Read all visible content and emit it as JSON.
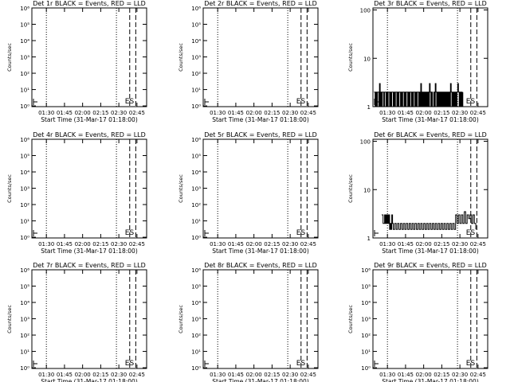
{
  "chart_data": [
    {
      "type": "line",
      "title": "Det 1r BLACK = Events, RED = LLD",
      "ylabel": "Counts/sec",
      "xlabel": "Start Time (31-Mar-17 01:18:00)",
      "yscale": "log",
      "ylim": [
        0.9,
        1000000.0
      ],
      "yticks": [
        "10⁰",
        "10¹",
        "10²",
        "10³",
        "10⁴",
        "10⁵",
        "10⁶"
      ],
      "x_ticks": [
        "01:30",
        "01:45",
        "02:00",
        "02:15",
        "02:30",
        "02:45"
      ],
      "markers": {
        "dotted": [
          "01:30",
          "02:28"
        ],
        "dashed": [
          "02:39",
          "02:44"
        ]
      },
      "annotation": "ES",
      "series": []
    },
    {
      "type": "line",
      "title": "Det 2r BLACK = Events, RED = LLD",
      "ylabel": "Counts/sec",
      "xlabel": "Start Time (31-Mar-17 01:18:00)",
      "yscale": "log",
      "ylim": [
        0.9,
        1000000.0
      ],
      "yticks": [
        "10⁰",
        "10¹",
        "10²",
        "10³",
        "10⁴",
        "10⁵",
        "10⁶"
      ],
      "x_ticks": [
        "01:30",
        "01:45",
        "02:00",
        "02:15",
        "02:30",
        "02:45"
      ],
      "markers": {
        "dotted": [
          "01:30",
          "02:28"
        ],
        "dashed": [
          "02:39",
          "02:44"
        ]
      },
      "annotation": "ES",
      "series": []
    },
    {
      "type": "line",
      "title": "Det 3r BLACK = Events, RED = LLD",
      "ylabel": "Counts/sec",
      "xlabel": "Start Time (31-Mar-17 01:18:00)",
      "yscale": "log",
      "ylim": [
        1,
        110
      ],
      "yticks": [
        "1",
        "10",
        "100"
      ],
      "x_ticks": [
        "01:30",
        "01:45",
        "02:00",
        "02:15",
        "02:30",
        "02:45"
      ],
      "markers": {
        "dotted": [
          "01:30",
          "02:28"
        ],
        "dashed": [
          "02:39",
          "02:44"
        ]
      },
      "annotation": "ES",
      "series": [
        {
          "color": "#000000",
          "values": [
            [
              1.5,
              2
            ],
            [
              3,
              1
            ],
            [
              4,
              2
            ],
            [
              5,
              1
            ],
            [
              6,
              2
            ],
            [
              8,
              1
            ],
            [
              9,
              3
            ],
            [
              10,
              1
            ],
            [
              11,
              2
            ],
            [
              12,
              1
            ],
            [
              13,
              2
            ],
            [
              15,
              1
            ],
            [
              16,
              2
            ],
            [
              18,
              1
            ],
            [
              19,
              2
            ],
            [
              20,
              1
            ],
            [
              21,
              2
            ],
            [
              23,
              1
            ],
            [
              24,
              2
            ],
            [
              25,
              1
            ],
            [
              26,
              2
            ],
            [
              28,
              1
            ],
            [
              29,
              2
            ],
            [
              30,
              1
            ],
            [
              31,
              2
            ],
            [
              33,
              1
            ],
            [
              34,
              2
            ],
            [
              35,
              1
            ],
            [
              36,
              2
            ],
            [
              38,
              1
            ],
            [
              39,
              2
            ],
            [
              40,
              1
            ],
            [
              41,
              2
            ],
            [
              43,
              1
            ],
            [
              44,
              2
            ],
            [
              45,
              1
            ],
            [
              46,
              2
            ],
            [
              48,
              1
            ],
            [
              49,
              2
            ],
            [
              50,
              1
            ],
            [
              51,
              2
            ],
            [
              53,
              1
            ],
            [
              54,
              2
            ],
            [
              55,
              1
            ],
            [
              56,
              2
            ],
            [
              58,
              1
            ],
            [
              59,
              2
            ],
            [
              60,
              1
            ],
            [
              61,
              2
            ],
            [
              62,
              2
            ],
            [
              63,
              1
            ],
            [
              64,
              2
            ],
            [
              65,
              1
            ],
            [
              66,
              3
            ],
            [
              67,
              1
            ],
            [
              68,
              2
            ],
            [
              69,
              1
            ],
            [
              70,
              2
            ],
            [
              71,
              1
            ],
            [
              72,
              2
            ],
            [
              73,
              1
            ],
            [
              74,
              2
            ],
            [
              75,
              1
            ],
            [
              76,
              2
            ],
            [
              77,
              1
            ],
            [
              78,
              3
            ],
            [
              79,
              2
            ],
            [
              80,
              1
            ],
            [
              81,
              2
            ],
            [
              82,
              1
            ],
            [
              84,
              2
            ],
            [
              85,
              1
            ],
            [
              86,
              3
            ],
            [
              87,
              2
            ],
            [
              88,
              1
            ],
            [
              89,
              2
            ],
            [
              90,
              1
            ],
            [
              91,
              2
            ],
            [
              92,
              1
            ],
            [
              93,
              2
            ],
            [
              94,
              1
            ],
            [
              95,
              2
            ],
            [
              96,
              1
            ],
            [
              97,
              2
            ],
            [
              98,
              1
            ],
            [
              99,
              2
            ],
            [
              100,
              1
            ],
            [
              101,
              2
            ],
            [
              102,
              1
            ],
            [
              103,
              2
            ],
            [
              104,
              1
            ],
            [
              105,
              2
            ],
            [
              106,
              1
            ],
            [
              107,
              3
            ],
            [
              108,
              2
            ],
            [
              109,
              1
            ],
            [
              110,
              2
            ],
            [
              111,
              1
            ],
            [
              112,
              2
            ],
            [
              113,
              1
            ],
            [
              114,
              2
            ],
            [
              115,
              1
            ],
            [
              116,
              2
            ],
            [
              117,
              3
            ],
            [
              118,
              2
            ],
            [
              119,
              1
            ],
            [
              120,
              2
            ],
            [
              121,
              1
            ],
            [
              122,
              2
            ],
            [
              123,
              1
            ],
            [
              124,
              2
            ]
          ]
        }
      ]
    },
    {
      "type": "line",
      "title": "Det 4r BLACK = Events, RED = LLD",
      "ylabel": "Counts/sec",
      "xlabel": "Start Time (31-Mar-17 01:18:00)",
      "yscale": "log",
      "ylim": [
        0.9,
        1000000.0
      ],
      "yticks": [
        "10⁰",
        "10¹",
        "10²",
        "10³",
        "10⁴",
        "10⁵",
        "10⁶"
      ],
      "x_ticks": [
        "01:30",
        "01:45",
        "02:00",
        "02:15",
        "02:30",
        "02:45"
      ],
      "markers": {
        "dotted": [
          "01:30",
          "02:28"
        ],
        "dashed": [
          "02:39",
          "02:44"
        ]
      },
      "annotation": "ES",
      "series": []
    },
    {
      "type": "line",
      "title": "Det 5r BLACK = Events, RED = LLD",
      "ylabel": "Counts/sec",
      "xlabel": "Start Time (31-Mar-17 01:18:00)",
      "yscale": "log",
      "ylim": [
        0.9,
        1000000.0
      ],
      "yticks": [
        "10⁰",
        "10¹",
        "10²",
        "10³",
        "10⁴",
        "10⁵",
        "10⁶"
      ],
      "x_ticks": [
        "01:30",
        "01:45",
        "02:00",
        "02:15",
        "02:30",
        "02:45"
      ],
      "markers": {
        "dotted": [
          "01:30",
          "02:28"
        ],
        "dashed": [
          "02:39",
          "02:44"
        ]
      },
      "annotation": "ES",
      "series": []
    },
    {
      "type": "line",
      "title": "Det 6r BLACK = Events, RED = LLD",
      "ylabel": "Counts/sec",
      "xlabel": "Start Time (31-Mar-17 01:18:00)",
      "yscale": "log",
      "ylim": [
        1,
        110
      ],
      "yticks": [
        "1",
        "10",
        "100"
      ],
      "x_ticks": [
        "01:30",
        "01:45",
        "02:00",
        "02:15",
        "02:30",
        "02:45"
      ],
      "markers": {
        "dotted": [
          "01:30",
          "02:28"
        ],
        "dashed": [
          "02:39",
          "02:44"
        ]
      },
      "annotation": "ES",
      "series": [
        {
          "color": "#000000",
          "values": [
            [
              12,
              3
            ],
            [
              14,
              2
            ],
            [
              16,
              3
            ],
            [
              17,
              2
            ],
            [
              18,
              3
            ],
            [
              19,
              2
            ],
            [
              20,
              3
            ],
            [
              21,
              2
            ],
            [
              22,
              3
            ],
            [
              23,
              1.5
            ],
            [
              24,
              2
            ],
            [
              25,
              1.5
            ],
            [
              26,
              3
            ],
            [
              27,
              2
            ],
            [
              28,
              1.5
            ],
            [
              30,
              2
            ],
            [
              32,
              1.5
            ],
            [
              34,
              2
            ],
            [
              36,
              1.5
            ],
            [
              38,
              2
            ],
            [
              40,
              1.5
            ],
            [
              42,
              2
            ],
            [
              44,
              1.5
            ],
            [
              46,
              2
            ],
            [
              48,
              1.5
            ],
            [
              50,
              2
            ],
            [
              52,
              1.5
            ],
            [
              54,
              2
            ],
            [
              56,
              1.5
            ],
            [
              58,
              2
            ],
            [
              60,
              1.5
            ],
            [
              62,
              2
            ],
            [
              64,
              1.5
            ],
            [
              66,
              2
            ],
            [
              68,
              1.5
            ],
            [
              70,
              2
            ],
            [
              72,
              1.5
            ],
            [
              74,
              2
            ],
            [
              76,
              1.5
            ],
            [
              78,
              2
            ],
            [
              80,
              1.5
            ],
            [
              82,
              2
            ],
            [
              84,
              1.5
            ],
            [
              86,
              2
            ],
            [
              88,
              1.5
            ],
            [
              90,
              2
            ],
            [
              92,
              1.5
            ],
            [
              94,
              2
            ],
            [
              96,
              1.5
            ],
            [
              98,
              2
            ],
            [
              100,
              1.5
            ],
            [
              102,
              2
            ],
            [
              104,
              1.5
            ],
            [
              106,
              2
            ],
            [
              108,
              1.5
            ],
            [
              110,
              2
            ],
            [
              112,
              1.5
            ],
            [
              114,
              3
            ],
            [
              116,
              2
            ],
            [
              118,
              3
            ],
            [
              120,
              2
            ],
            [
              122,
              3
            ],
            [
              124,
              2
            ],
            [
              126,
              3.5
            ],
            [
              128,
              2
            ],
            [
              130,
              3
            ],
            [
              132,
              2.5
            ],
            [
              134,
              3
            ],
            [
              136,
              2
            ],
            [
              138,
              3
            ],
            [
              140,
              2
            ],
            [
              142,
              1.5
            ]
          ]
        }
      ]
    },
    {
      "type": "line",
      "title": "Det 7r BLACK = Events, RED = LLD",
      "ylabel": "Counts/sec",
      "xlabel": "Start Time (31-Mar-17 01:18:00)",
      "yscale": "log",
      "ylim": [
        0.9,
        1000000.0
      ],
      "yticks": [
        "10⁰",
        "10¹",
        "10²",
        "10³",
        "10⁴",
        "10⁵",
        "10⁶"
      ],
      "x_ticks": [
        "01:30",
        "01:45",
        "02:00",
        "02:15",
        "02:30",
        "02:45"
      ],
      "markers": {
        "dotted": [
          "01:30",
          "02:28"
        ],
        "dashed": [
          "02:39",
          "02:44"
        ]
      },
      "annotation": "ES",
      "series": []
    },
    {
      "type": "line",
      "title": "Det 8r BLACK = Events, RED = LLD",
      "ylabel": "Counts/sec",
      "xlabel": "Start Time (31-Mar-17 01:18:00)",
      "yscale": "log",
      "ylim": [
        0.9,
        1000000.0
      ],
      "yticks": [
        "10⁰",
        "10¹",
        "10²",
        "10³",
        "10⁴",
        "10⁵",
        "10⁶"
      ],
      "x_ticks": [
        "01:30",
        "01:45",
        "02:00",
        "02:15",
        "02:30",
        "02:45"
      ],
      "markers": {
        "dotted": [
          "01:30",
          "02:28"
        ],
        "dashed": [
          "02:39",
          "02:44"
        ]
      },
      "annotation": "ES",
      "series": []
    },
    {
      "type": "line",
      "title": "Det 9r BLACK = Events, RED = LLD",
      "ylabel": "Counts/sec",
      "xlabel": "Start Time (31-Mar-17 01:18:00)",
      "yscale": "log",
      "ylim": [
        0.9,
        1000000.0
      ],
      "yticks": [
        "10⁰",
        "10¹",
        "10²",
        "10³",
        "10⁴",
        "10⁵",
        "10⁶"
      ],
      "x_ticks": [
        "01:30",
        "01:45",
        "02:00",
        "02:15",
        "02:30",
        "02:45"
      ],
      "markers": {
        "dotted": [
          "01:30",
          "02:28"
        ],
        "dashed": [
          "02:39",
          "02:44"
        ]
      },
      "annotation": "ES",
      "series": []
    }
  ]
}
